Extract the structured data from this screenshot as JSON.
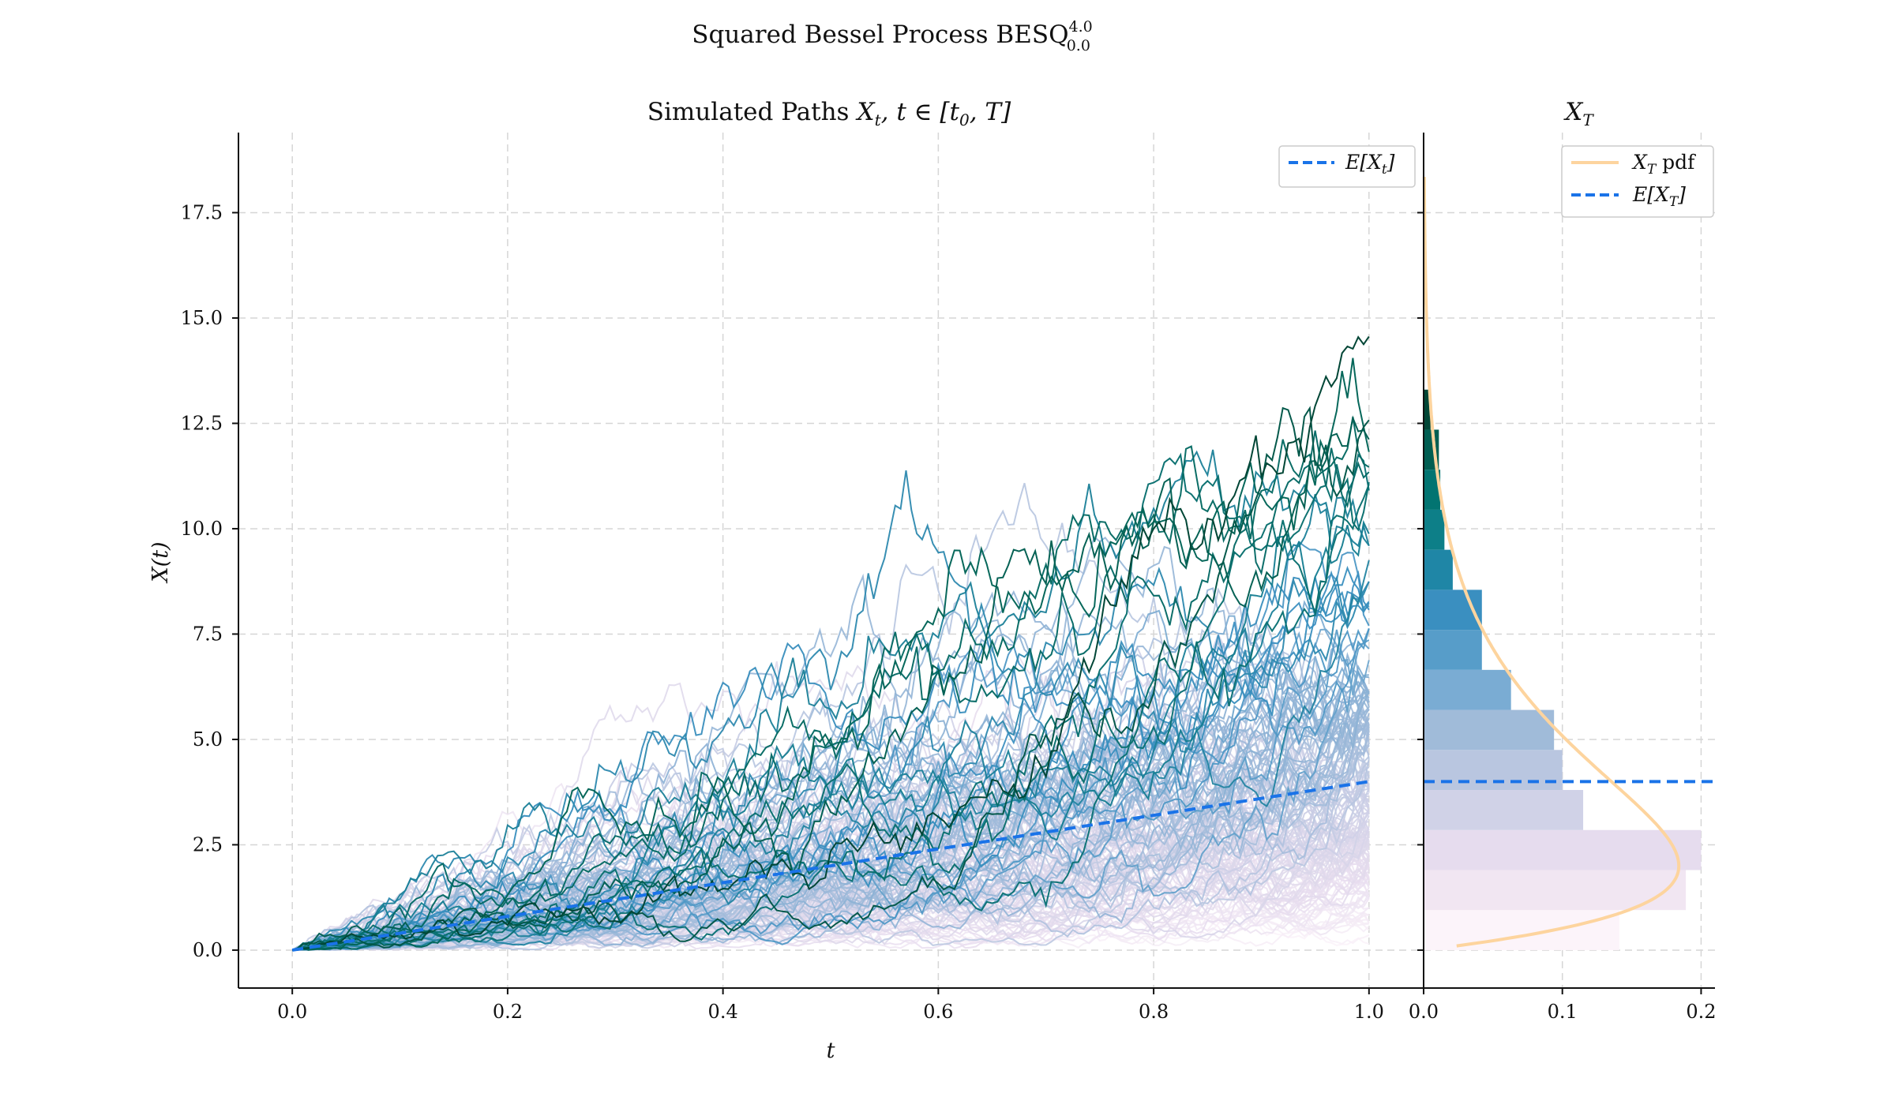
{
  "figure": {
    "suptitle": "Squared Bessel Process BESQ",
    "suptitle_sup": "4.0",
    "suptitle_sub": "0.0"
  },
  "colors": {
    "mean_line": "#1a73e8",
    "pdf_line": "#fdd49e",
    "path_dark": "#014636",
    "path_mid": "#3690c0",
    "path_light": "#f2e8f4"
  },
  "chart_data": [
    {
      "type": "line",
      "title_text": "Simulated Paths",
      "title_math": "X",
      "title_math_sub": "t",
      "title_math_rest": ", t ∈ [t",
      "title_math_sub2": "0",
      "title_math_end": ", T]",
      "xlabel": "t",
      "ylabel": "X(t)",
      "xlim": [
        -0.05,
        1.05
      ],
      "ylim": [
        -0.9,
        19.4
      ],
      "xticks": [
        "0.0",
        "0.2",
        "0.4",
        "0.6",
        "0.8",
        "1.0"
      ],
      "yticks": [
        "0.0",
        "2.5",
        "5.0",
        "7.5",
        "10.0",
        "12.5",
        "15.0",
        "17.5"
      ],
      "grid": true,
      "legend": {
        "placement": "top-right",
        "entries": [
          "E[X_t]"
        ]
      },
      "legend_label_main": "E[X",
      "legend_label_sub": "t",
      "legend_label_end": "]",
      "series": [
        {
          "name": "E[X_t]",
          "style": "dashed",
          "x": [
            0.0,
            1.0
          ],
          "y": [
            0.0,
            4.0
          ]
        }
      ],
      "paths": {
        "dimension": 4.0,
        "x0": 0.0,
        "t0": 0.0,
        "T": 1.0,
        "count": 500
      }
    },
    {
      "type": "bar",
      "orientation": "horizontal",
      "title_text": "X",
      "title_sub": "T",
      "xlim": [
        0.0,
        0.21
      ],
      "ylim": [
        -0.9,
        19.4
      ],
      "xticks": [
        "0.0",
        "0.1",
        "0.2"
      ],
      "grid": true,
      "legend": {
        "placement": "top-right",
        "entries": [
          "X_T pdf",
          "E[X_T]"
        ]
      },
      "legend_pdf_main": "X",
      "legend_pdf_sub": "T",
      "legend_pdf_end": " pdf",
      "legend_mean_main": "E[X",
      "legend_mean_sub": "T",
      "legend_mean_end": "]",
      "bins": [
        {
          "y0": 0.0,
          "y1": 0.95,
          "density": 0.141,
          "color": "#fcf4fa"
        },
        {
          "y0": 0.95,
          "y1": 1.9,
          "density": 0.189,
          "color": "#f1e6f2"
        },
        {
          "y0": 1.9,
          "y1": 2.85,
          "density": 0.2,
          "color": "#e6dcee"
        },
        {
          "y0": 2.85,
          "y1": 3.8,
          "density": 0.115,
          "color": "#d0d2e7"
        },
        {
          "y0": 3.8,
          "y1": 4.75,
          "density": 0.1,
          "color": "#b9c6e0"
        },
        {
          "y0": 4.75,
          "y1": 5.7,
          "density": 0.094,
          "color": "#a0bbd9"
        },
        {
          "y0": 5.7,
          "y1": 6.65,
          "density": 0.063,
          "color": "#7aacd3"
        },
        {
          "y0": 6.65,
          "y1": 7.6,
          "density": 0.042,
          "color": "#579dc9"
        },
        {
          "y0": 7.6,
          "y1": 8.55,
          "density": 0.042,
          "color": "#3a8fc0"
        },
        {
          "y0": 8.55,
          "y1": 9.5,
          "density": 0.021,
          "color": "#1f86a6"
        },
        {
          "y0": 9.5,
          "y1": 10.45,
          "density": 0.015,
          "color": "#0d7f88"
        },
        {
          "y0": 10.45,
          "y1": 11.4,
          "density": 0.012,
          "color": "#027471"
        },
        {
          "y0": 11.4,
          "y1": 12.35,
          "density": 0.011,
          "color": "#015e52"
        },
        {
          "y0": 12.35,
          "y1": 13.3,
          "density": 0.005,
          "color": "#014636"
        }
      ],
      "pdf": {
        "distribution": "noncentral chi-square scaled",
        "dimension": 4.0,
        "T": 1.0,
        "y_range": [
          0.1,
          18.4
        ]
      },
      "mean": 4.0
    }
  ]
}
